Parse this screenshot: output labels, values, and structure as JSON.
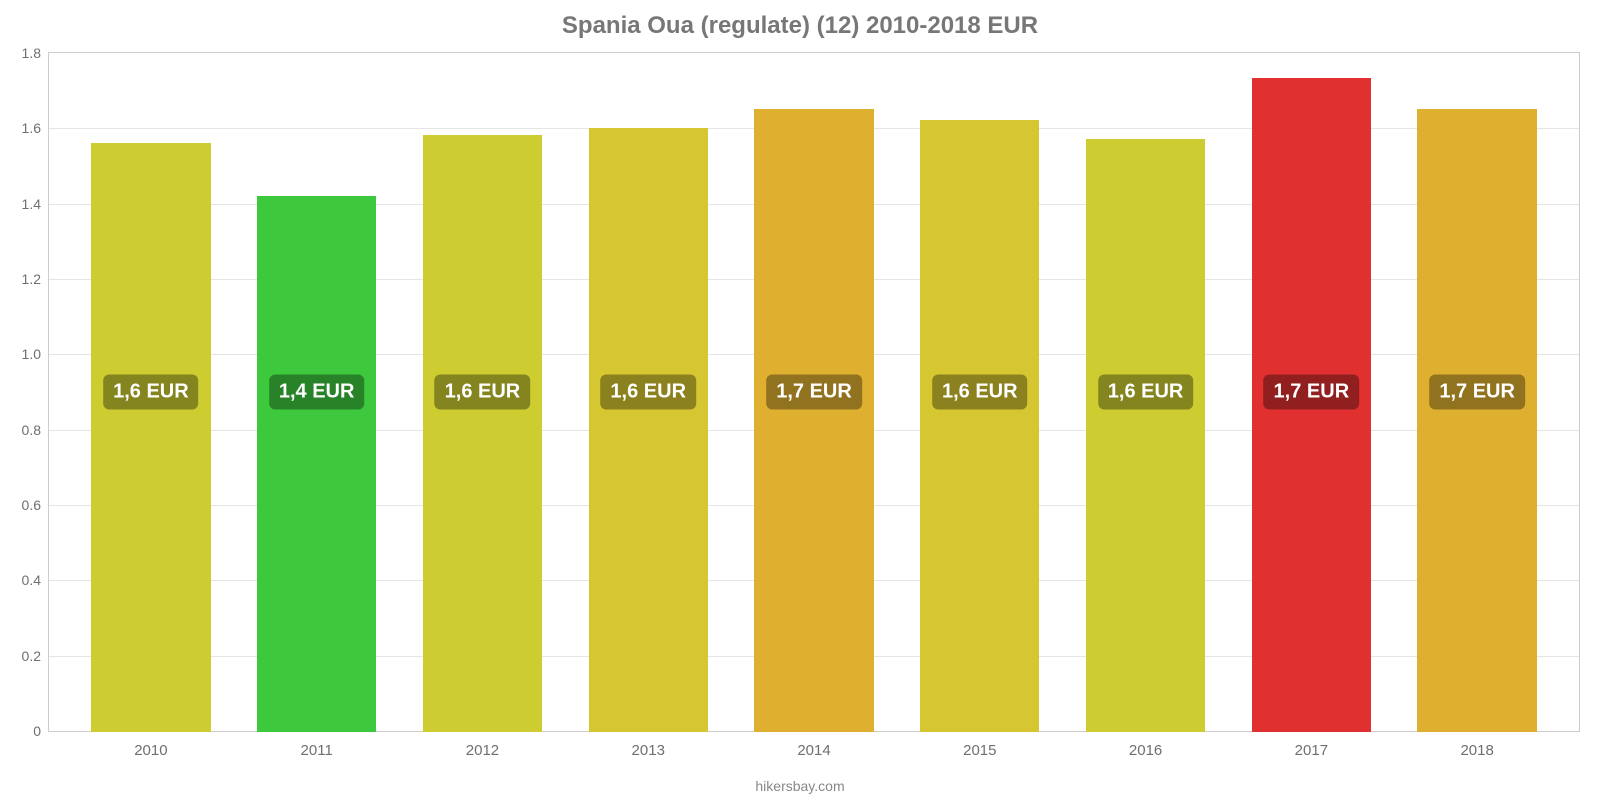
{
  "chart": {
    "type": "bar",
    "title": "Spania Oua (regulate) (12) 2010-2018 EUR",
    "title_fontsize": 24,
    "title_color": "#777777",
    "footer": "hikersbay.com",
    "footer_color": "#888888",
    "background_color": "#ffffff",
    "plot_border_color": "#cccccc",
    "grid_color": "#e5e5e5",
    "axis_text_color": "#706f6e",
    "ylim_min": 0,
    "ylim_max": 1.8,
    "yticks": [
      0,
      0.2,
      0.4,
      0.6,
      0.8,
      1.0,
      1.2,
      1.4,
      1.6,
      1.8
    ],
    "bar_width_pct": 72,
    "label_badge_bg": "rgba(0,0,0,0.35)",
    "label_badge_fontcolor": "#ffffff",
    "label_badge_fontsize": 20,
    "label_badge_y_value": 0.9,
    "x_label_fontsize": 15,
    "y_label_fontsize": 14,
    "bars": [
      {
        "category": "2010",
        "value": 1.56,
        "color": "#cdcd32",
        "label": "1,6 EUR"
      },
      {
        "category": "2011",
        "value": 1.42,
        "color": "#3ec83e",
        "label": "1,4 EUR"
      },
      {
        "category": "2012",
        "value": 1.58,
        "color": "#cdcd32",
        "label": "1,6 EUR"
      },
      {
        "category": "2013",
        "value": 1.6,
        "color": "#d6c631",
        "label": "1,6 EUR"
      },
      {
        "category": "2014",
        "value": 1.65,
        "color": "#dfb030",
        "label": "1,7 EUR"
      },
      {
        "category": "2015",
        "value": 1.62,
        "color": "#d6c631",
        "label": "1,6 EUR"
      },
      {
        "category": "2016",
        "value": 1.57,
        "color": "#cdcd32",
        "label": "1,6 EUR"
      },
      {
        "category": "2017",
        "value": 1.73,
        "color": "#e03030",
        "label": "1,7 EUR"
      },
      {
        "category": "2018",
        "value": 1.65,
        "color": "#dfb030",
        "label": "1,7 EUR"
      }
    ]
  }
}
